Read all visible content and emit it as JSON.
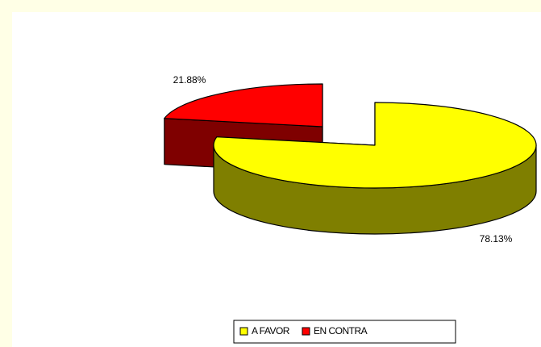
{
  "chart_data": {
    "type": "pie",
    "categories": [
      "A FAVOR",
      "EN CONTRA"
    ],
    "values": [
      78.13,
      21.88
    ],
    "value_labels": [
      "78.13%",
      "21.88%"
    ],
    "colors": [
      "#ffff00",
      "#ff0000"
    ]
  }
}
